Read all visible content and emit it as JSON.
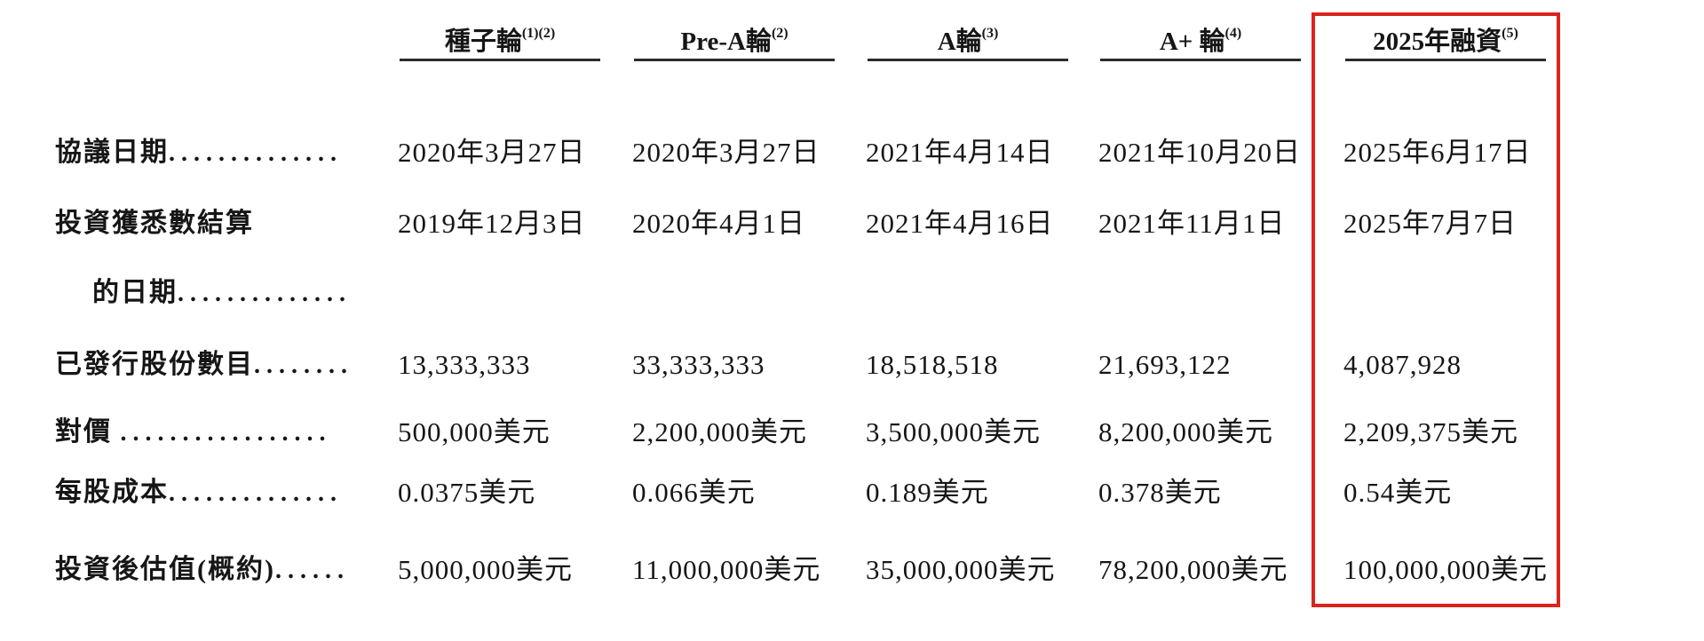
{
  "table": {
    "columns": [
      {
        "label": "種子輪",
        "note": "(1)(2)"
      },
      {
        "label": "Pre-A輪",
        "note": "(2)"
      },
      {
        "label": "A輪",
        "note": "(3)"
      },
      {
        "label": "A+ 輪",
        "note": "(4)"
      },
      {
        "label": "2025年融資",
        "note": "(5)",
        "highlighted": true
      }
    ],
    "rows": [
      {
        "label": "協議日期",
        "dots": "..............",
        "values": [
          "2020年3月27日",
          "2020年3月27日",
          "2021年4月14日",
          "2021年10月20日",
          "2025年6月17日"
        ]
      },
      {
        "label": "投資獲悉數結算",
        "label2": "的日期",
        "dots2": "..............",
        "values": [
          "2019年12月3日",
          "2020年4月1日",
          "2021年4月16日",
          "2021年11月1日",
          "2025年7月7日"
        ]
      },
      {
        "label": "已發行股份數目",
        "dots": "........",
        "values": [
          "13,333,333",
          "33,333,333",
          "18,518,518",
          "21,693,122",
          "4,087,928"
        ]
      },
      {
        "label": "對價",
        "dots": ".................",
        "values": [
          "500,000美元",
          "2,200,000美元",
          "3,500,000美元",
          "8,200,000美元",
          "2,209,375美元"
        ]
      },
      {
        "label": "每股成本",
        "dots": "..............",
        "values": [
          "0.0375美元",
          "0.066美元",
          "0.189美元",
          "0.378美元",
          "0.54美元"
        ]
      },
      {
        "label": "投資後估值(概約)",
        "dots": "......",
        "values": [
          "5,000,000美元",
          "11,000,000美元",
          "35,000,000美元",
          "78,200,000美元",
          "100,000,000美元"
        ]
      }
    ],
    "highlight_color": "#d9251d"
  }
}
